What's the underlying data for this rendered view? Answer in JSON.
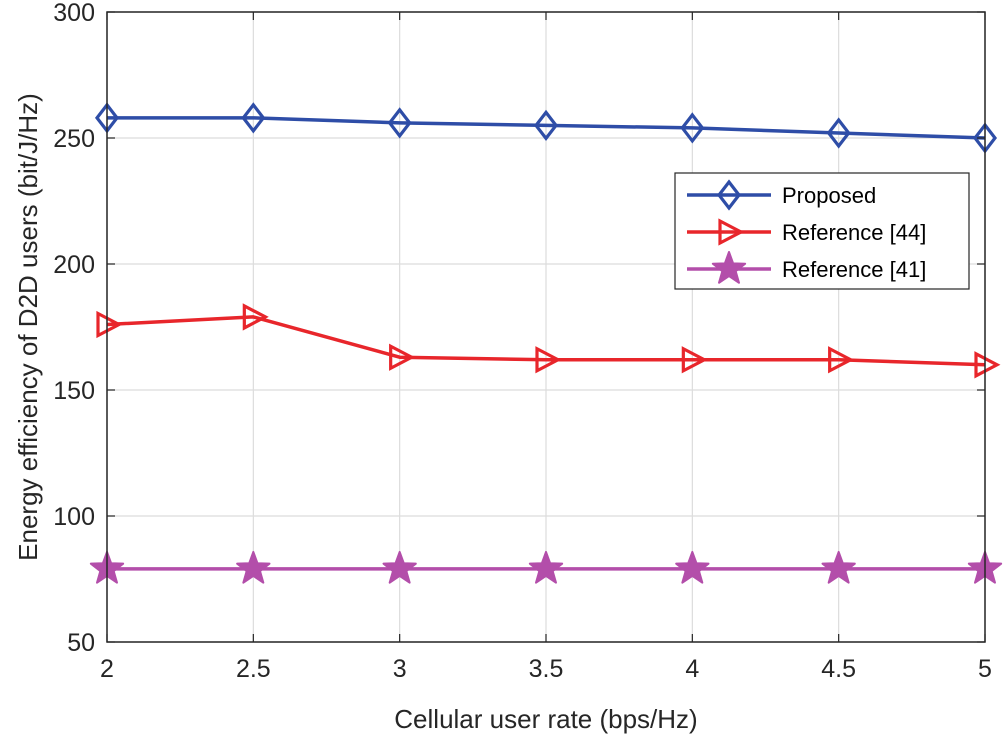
{
  "chart_data": {
    "type": "line",
    "title": "",
    "xlabel": "Cellular user rate (bps/Hz)",
    "ylabel": "Energy efficiency of D2D users (bit/J/Hz)",
    "xlim": [
      2,
      5
    ],
    "ylim": [
      50,
      300
    ],
    "grid": true,
    "legend_position": "top-right",
    "x": [
      2,
      2.5,
      3,
      3.5,
      4,
      4.5,
      5
    ],
    "x_ticks": [
      "2",
      "2.5",
      "3",
      "3.5",
      "4",
      "4.5",
      "5"
    ],
    "y_ticks": [
      "50",
      "100",
      "150",
      "200",
      "250",
      "300"
    ],
    "series": [
      {
        "name": "Proposed",
        "marker": "diamond",
        "color": "#2E4DA7",
        "values": [
          258,
          258,
          256,
          255,
          254,
          252,
          250
        ]
      },
      {
        "name": "Reference [44]",
        "marker": "triangle-right",
        "color": "#E8262B",
        "values": [
          176,
          179,
          163,
          162,
          162,
          162,
          160
        ]
      },
      {
        "name": "Reference [41]",
        "marker": "star",
        "color": "#B34EAA",
        "values": [
          79,
          79,
          79,
          79,
          79,
          79,
          79
        ]
      }
    ]
  }
}
